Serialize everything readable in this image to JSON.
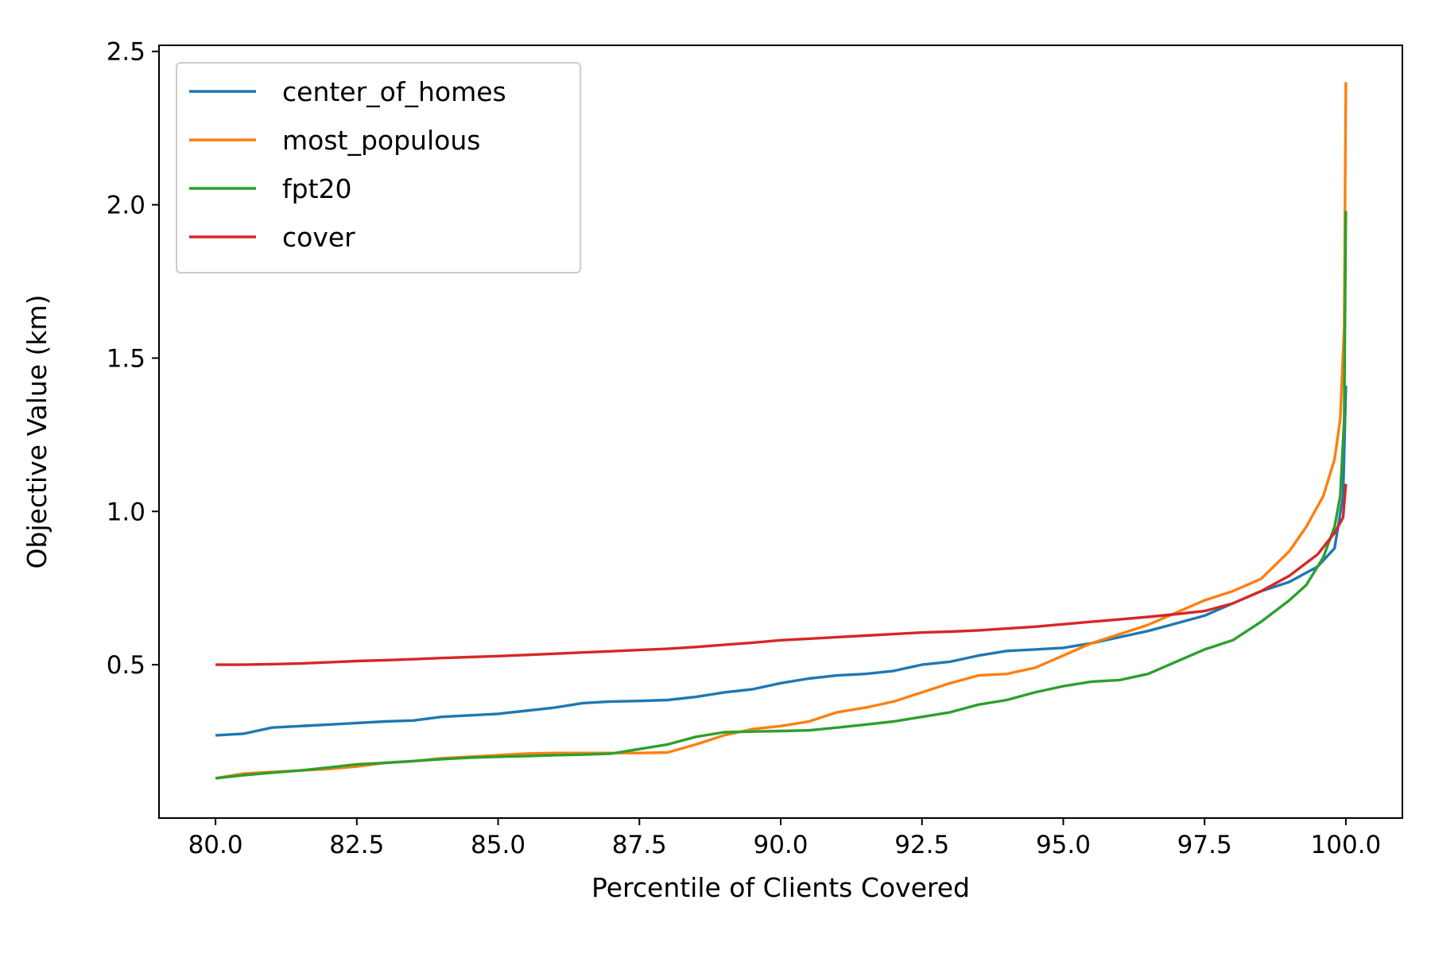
{
  "chart_data": {
    "type": "line",
    "title": "",
    "xlabel": "Percentile of Clients Covered",
    "ylabel": "Objective Value (km)",
    "xlim": [
      79.0,
      101.0
    ],
    "ylim": [
      0.0,
      2.52
    ],
    "xticks": [
      80.0,
      82.5,
      85.0,
      87.5,
      90.0,
      92.5,
      95.0,
      97.5,
      100.0
    ],
    "xtick_labels": [
      "80.0",
      "82.5",
      "85.0",
      "87.5",
      "90.0",
      "92.5",
      "95.0",
      "97.5",
      "100.0"
    ],
    "yticks": [
      0.5,
      1.0,
      1.5,
      2.0,
      2.5
    ],
    "ytick_labels": [
      "0.5",
      "1.0",
      "1.5",
      "2.0",
      "2.5"
    ],
    "grid": false,
    "legend_position": "top-left",
    "series": [
      {
        "name": "center_of_homes",
        "color": "#1f77b4",
        "x": [
          80.0,
          80.5,
          81.0,
          81.5,
          82.0,
          82.5,
          83.0,
          83.5,
          84.0,
          84.5,
          85.0,
          85.5,
          86.0,
          86.5,
          87.0,
          87.5,
          88.0,
          88.5,
          89.0,
          89.5,
          90.0,
          90.5,
          91.0,
          91.5,
          92.0,
          92.5,
          93.0,
          93.5,
          94.0,
          94.5,
          95.0,
          95.5,
          96.0,
          96.5,
          97.0,
          97.5,
          98.0,
          98.5,
          99.0,
          99.5,
          99.8,
          99.95,
          100.0
        ],
        "y": [
          0.27,
          0.275,
          0.295,
          0.3,
          0.305,
          0.31,
          0.315,
          0.318,
          0.33,
          0.335,
          0.34,
          0.35,
          0.36,
          0.375,
          0.38,
          0.382,
          0.385,
          0.395,
          0.41,
          0.42,
          0.44,
          0.455,
          0.465,
          0.47,
          0.48,
          0.5,
          0.51,
          0.53,
          0.545,
          0.55,
          0.555,
          0.57,
          0.59,
          0.61,
          0.635,
          0.66,
          0.7,
          0.74,
          0.77,
          0.82,
          0.88,
          1.05,
          1.41
        ]
      },
      {
        "name": "most_populous",
        "color": "#ff7f0e",
        "x": [
          80.0,
          80.5,
          81.0,
          81.5,
          82.0,
          82.5,
          83.0,
          83.5,
          84.0,
          84.5,
          85.0,
          85.5,
          86.0,
          86.5,
          87.0,
          87.5,
          88.0,
          88.5,
          89.0,
          89.5,
          90.0,
          90.5,
          91.0,
          91.5,
          92.0,
          92.5,
          93.0,
          93.5,
          94.0,
          94.5,
          95.0,
          95.5,
          96.0,
          96.5,
          97.0,
          97.5,
          98.0,
          98.5,
          99.0,
          99.3,
          99.6,
          99.8,
          99.9,
          99.97,
          100.0
        ],
        "y": [
          0.13,
          0.145,
          0.15,
          0.155,
          0.16,
          0.168,
          0.18,
          0.185,
          0.195,
          0.2,
          0.205,
          0.21,
          0.212,
          0.212,
          0.212,
          0.212,
          0.214,
          0.24,
          0.27,
          0.29,
          0.3,
          0.315,
          0.345,
          0.36,
          0.38,
          0.41,
          0.44,
          0.465,
          0.47,
          0.49,
          0.53,
          0.57,
          0.6,
          0.63,
          0.67,
          0.71,
          0.74,
          0.78,
          0.87,
          0.95,
          1.05,
          1.17,
          1.3,
          1.6,
          2.4
        ]
      },
      {
        "name": "fpt20",
        "color": "#2ca02c",
        "x": [
          80.0,
          80.5,
          81.0,
          81.5,
          82.0,
          82.5,
          83.0,
          83.5,
          84.0,
          84.5,
          85.0,
          85.5,
          86.0,
          86.5,
          87.0,
          87.5,
          88.0,
          88.5,
          89.0,
          89.5,
          90.0,
          90.5,
          91.0,
          91.5,
          92.0,
          92.5,
          93.0,
          93.5,
          94.0,
          94.5,
          95.0,
          95.5,
          96.0,
          96.5,
          97.0,
          97.5,
          98.0,
          98.5,
          99.0,
          99.3,
          99.6,
          99.8,
          99.9,
          99.97,
          100.0
        ],
        "y": [
          0.13,
          0.14,
          0.148,
          0.155,
          0.165,
          0.175,
          0.18,
          0.186,
          0.192,
          0.197,
          0.2,
          0.202,
          0.205,
          0.207,
          0.21,
          0.225,
          0.24,
          0.265,
          0.28,
          0.282,
          0.284,
          0.286,
          0.295,
          0.305,
          0.315,
          0.33,
          0.345,
          0.37,
          0.385,
          0.41,
          0.43,
          0.445,
          0.45,
          0.47,
          0.51,
          0.55,
          0.58,
          0.64,
          0.71,
          0.76,
          0.85,
          0.95,
          1.05,
          1.3,
          1.98
        ]
      },
      {
        "name": "cover",
        "color": "#d62728",
        "x": [
          80.0,
          80.5,
          81.0,
          81.5,
          82.0,
          82.5,
          83.0,
          83.5,
          84.0,
          84.5,
          85.0,
          85.5,
          86.0,
          86.5,
          87.0,
          87.5,
          88.0,
          88.5,
          89.0,
          89.5,
          90.0,
          90.5,
          91.0,
          91.5,
          92.0,
          92.5,
          93.0,
          93.5,
          94.0,
          94.5,
          95.0,
          95.5,
          96.0,
          96.5,
          97.0,
          97.5,
          98.0,
          98.5,
          99.0,
          99.5,
          99.8,
          99.95,
          100.0
        ],
        "y": [
          0.5,
          0.5,
          0.502,
          0.504,
          0.508,
          0.512,
          0.515,
          0.518,
          0.522,
          0.525,
          0.528,
          0.532,
          0.536,
          0.54,
          0.544,
          0.548,
          0.552,
          0.558,
          0.565,
          0.572,
          0.58,
          0.585,
          0.59,
          0.595,
          0.6,
          0.605,
          0.608,
          0.612,
          0.618,
          0.624,
          0.632,
          0.64,
          0.648,
          0.656,
          0.665,
          0.675,
          0.7,
          0.74,
          0.79,
          0.86,
          0.93,
          0.98,
          1.09
        ]
      }
    ]
  }
}
